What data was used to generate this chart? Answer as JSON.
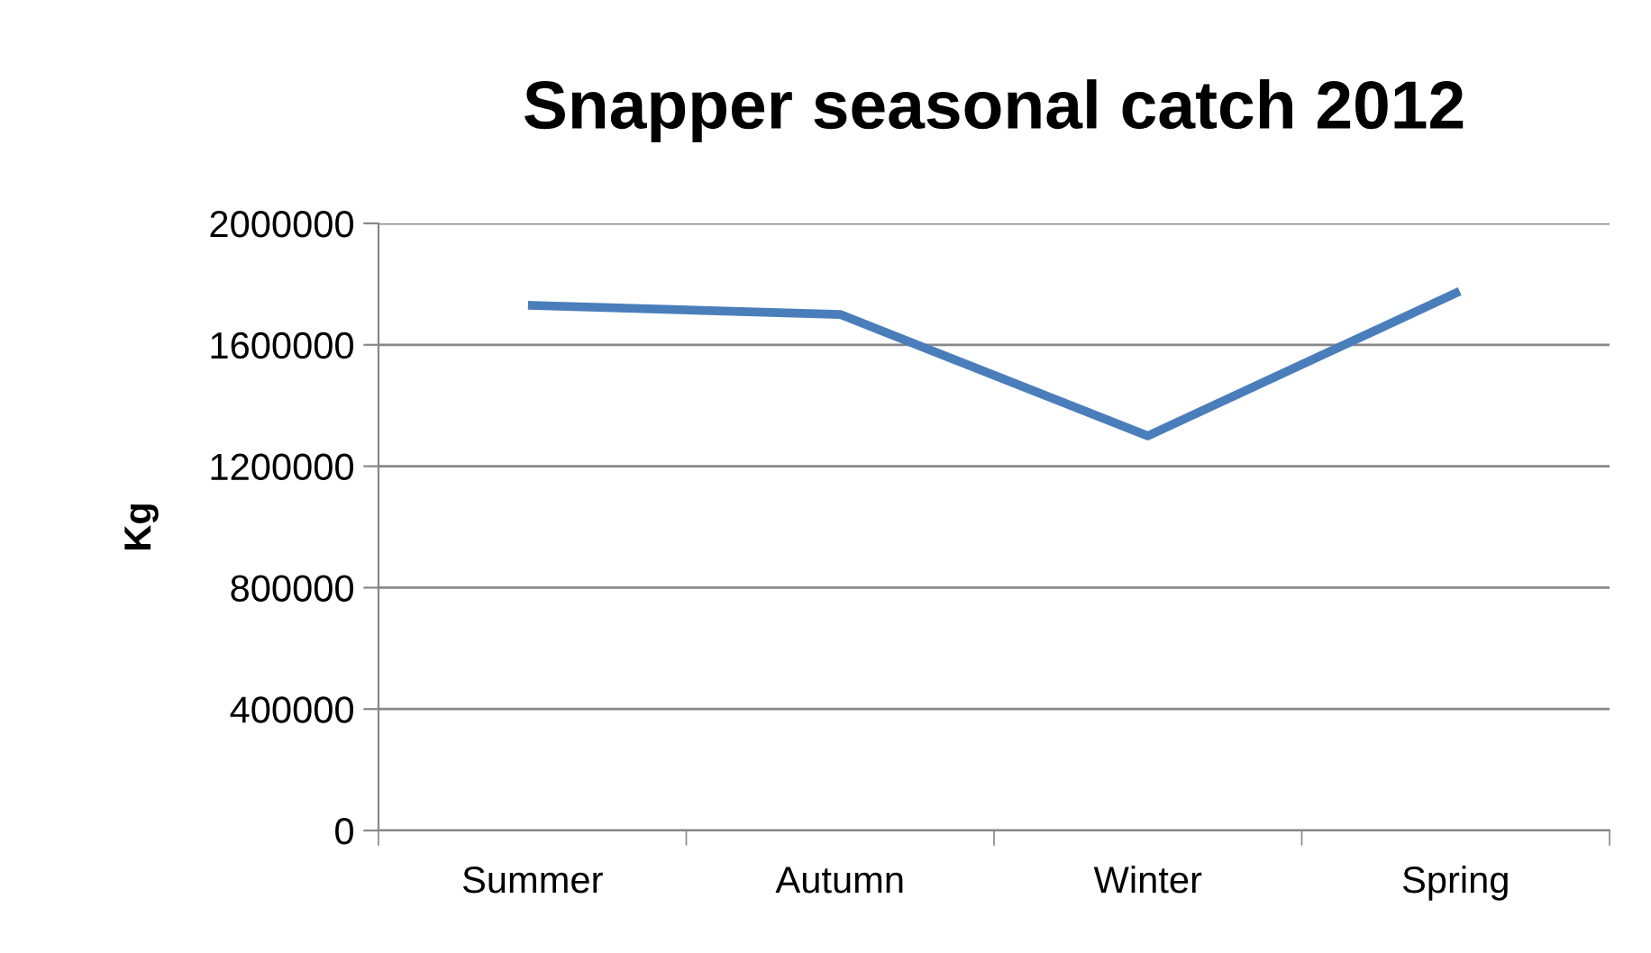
{
  "chart_data": {
    "type": "line",
    "title": "Snapper seasonal catch 2012",
    "ylabel": "Kg",
    "categories": [
      "Summer",
      "Autumn",
      "Winter",
      "Spring"
    ],
    "series": [
      {
        "color": "#4a7ebb",
        "values": [
          1730000,
          1700000,
          1300000,
          1770000
        ]
      }
    ],
    "ylim": [
      0,
      2000000
    ],
    "yticks": [
      0,
      400000,
      800000,
      1200000,
      1600000,
      2000000
    ],
    "grid": "y",
    "legend": false,
    "marker": "none",
    "line_style": "solid"
  }
}
